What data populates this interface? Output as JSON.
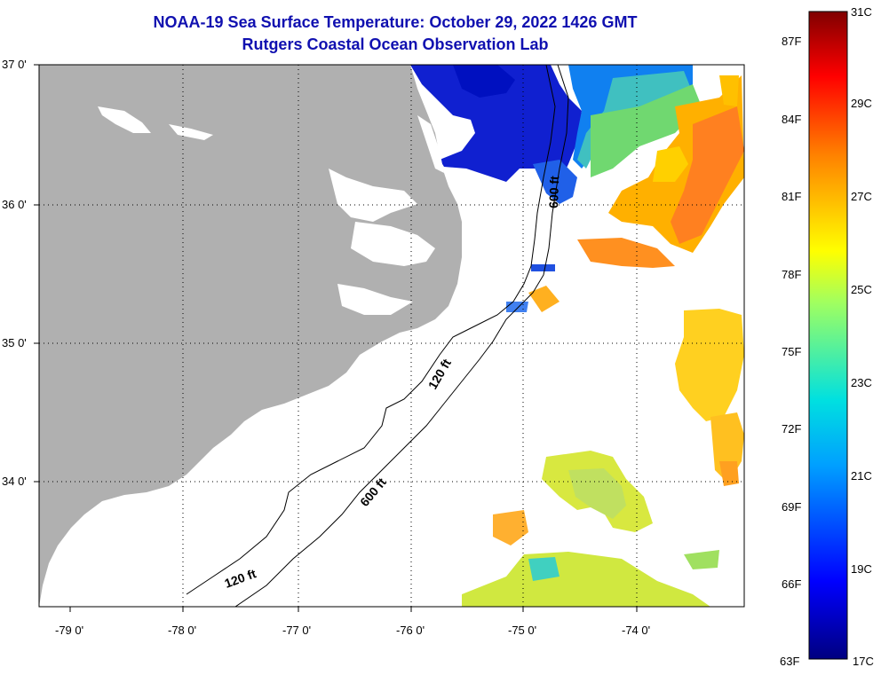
{
  "title": "NOAA-19 Sea Surface Temperature:  October 29, 2022 1426 GMT",
  "subtitle": "Rutgers Coastal Ocean Observation Lab",
  "lon_labels": [
    "-79 0'",
    "-78 0'",
    "-77 0'",
    "-76 0'",
    "-75 0'",
    "-74 0'"
  ],
  "lat_labels": [
    "37 0'",
    "36 0'",
    "35 0'",
    "34 0'"
  ],
  "contours": {
    "c600_top": "600 ft",
    "c120_mid": "120 ft",
    "c600_mid": "600 ft",
    "c120_bot": "120 ft"
  },
  "colorbar": {
    "f_labels": [
      "87F",
      "84F",
      "81F",
      "78F",
      "75F",
      "72F",
      "69F",
      "66F",
      "63F"
    ],
    "c_labels": [
      "31C",
      "29C",
      "27C",
      "25C",
      "23C",
      "21C",
      "19C",
      "17C"
    ]
  },
  "colors": {
    "land": "#b0b0b0",
    "title": "#1010b0"
  }
}
